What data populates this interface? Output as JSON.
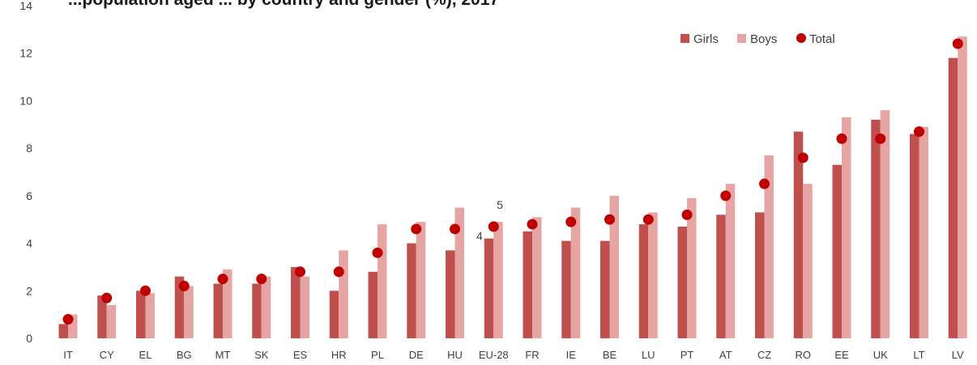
{
  "page": {
    "title": "...population aged ... by country and gender (%), 2017"
  },
  "chart_data": {
    "type": "bar",
    "title": "",
    "xlabel": "",
    "ylabel": "",
    "ylim": [
      0,
      14
    ],
    "yticks": [
      0,
      2,
      4,
      6,
      8,
      10,
      12,
      14
    ],
    "grid": false,
    "legend_position": "top-right",
    "categories": [
      "IT",
      "CY",
      "EL",
      "BG",
      "MT",
      "SK",
      "ES",
      "HR",
      "PL",
      "DE",
      "HU",
      "EU-28",
      "FR",
      "IE",
      "BE",
      "LU",
      "PT",
      "AT",
      "CZ",
      "RO",
      "EE",
      "UK",
      "LT",
      "LV"
    ],
    "series": [
      {
        "name": "Girls",
        "kind": "bar",
        "color": "#c0504d",
        "values": [
          0.6,
          1.8,
          2.0,
          2.6,
          2.3,
          2.3,
          3.0,
          2.0,
          2.8,
          4.0,
          3.7,
          4.2,
          4.5,
          4.1,
          4.1,
          4.8,
          4.7,
          5.2,
          5.3,
          8.7,
          7.3,
          9.2,
          8.6,
          11.8
        ]
      },
      {
        "name": "Boys",
        "kind": "bar",
        "color": "#e6a5a3",
        "values": [
          1.0,
          1.4,
          1.9,
          2.2,
          2.9,
          2.6,
          2.6,
          3.7,
          4.8,
          4.9,
          5.5,
          4.9,
          5.1,
          5.5,
          6.0,
          5.3,
          5.9,
          6.5,
          7.7,
          6.5,
          9.3,
          9.6,
          8.9,
          12.7
        ]
      },
      {
        "name": "Total",
        "kind": "dot",
        "color": "#c00000",
        "values": [
          0.8,
          1.7,
          2.0,
          2.2,
          2.5,
          2.5,
          2.8,
          2.8,
          3.6,
          4.6,
          4.6,
          4.7,
          4.8,
          4.9,
          5.0,
          5.0,
          5.2,
          6.0,
          6.5,
          7.6,
          8.4,
          8.4,
          8.7,
          12.4
        ]
      }
    ],
    "data_labels": [
      {
        "category": "EU-28",
        "series": "Girls",
        "text": "4"
      },
      {
        "category": "EU-28",
        "series": "Boys",
        "text": "5"
      }
    ]
  }
}
